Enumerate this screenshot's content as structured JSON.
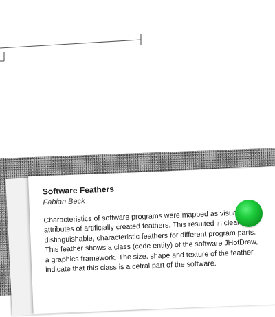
{
  "card": {
    "title": "Software Feathers",
    "author": "Fabian Beck",
    "lines": [
      "Characteristics of software programs were mapped as visual",
      "attributes of artificially created feathers. This resulted in clearly",
      "distinguishable, characteristic feathers for different program parts.",
      "This feather shows a class (code entity) of the software JHotDraw,",
      "a graphics framework. The size, shape and texture of the feather",
      "indicate that this class is a cetral part of the software."
    ]
  },
  "colors": {
    "pointer": "#1dcb3b",
    "ruler": "#555555"
  }
}
